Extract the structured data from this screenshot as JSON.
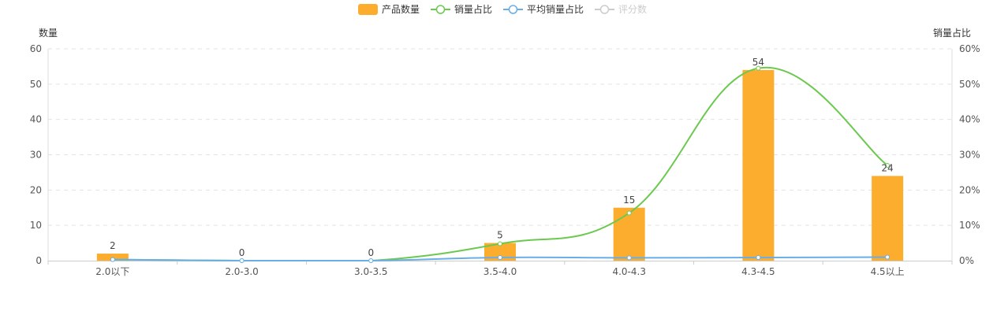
{
  "chart_data": {
    "type": "bar",
    "categories": [
      "2.0以下",
      "2.0-3.0",
      "3.0-3.5",
      "3.5-4.0",
      "4.0-4.3",
      "4.3-4.5",
      "4.5以上"
    ],
    "y_left": {
      "label": "数量",
      "lim": [
        0,
        60
      ],
      "ticks": [
        "0",
        "10",
        "20",
        "30",
        "40",
        "50",
        "60"
      ]
    },
    "y_right": {
      "label": "销量占比",
      "lim": [
        0,
        60
      ],
      "ticks": [
        "0%",
        "10%",
        "20%",
        "30%",
        "40%",
        "50%",
        "60%"
      ]
    },
    "legend": {
      "placement": "top-center",
      "items": [
        {
          "name": "产品数量",
          "type": "bar",
          "color": "#fdad2e",
          "enabled": true
        },
        {
          "name": "销量占比",
          "type": "line",
          "color": "#6cc94f",
          "enabled": true
        },
        {
          "name": "平均销量占比",
          "type": "line",
          "color": "#6aaee6",
          "enabled": true
        },
        {
          "name": "评分数",
          "type": "line",
          "color": "#cccccc",
          "enabled": false
        }
      ]
    },
    "series": [
      {
        "name": "产品数量",
        "type": "bar",
        "axis": "left",
        "color": "#fdad2e",
        "values": [
          2,
          0,
          0,
          5,
          15,
          54,
          24
        ],
        "labels": [
          "2",
          "0",
          "0",
          "5",
          "15",
          "54",
          "24"
        ]
      },
      {
        "name": "销量占比",
        "type": "line",
        "axis": "right",
        "color": "#6cc94f",
        "values": [
          0.3,
          0,
          0,
          4.8,
          13.5,
          54.5,
          27
        ]
      },
      {
        "name": "平均销量占比",
        "type": "line",
        "axis": "right",
        "color": "#6aaee6",
        "values": [
          0.3,
          0,
          0,
          0.9,
          0.8,
          0.9,
          1.0
        ]
      }
    ],
    "grid": "horizontal-dashed"
  }
}
